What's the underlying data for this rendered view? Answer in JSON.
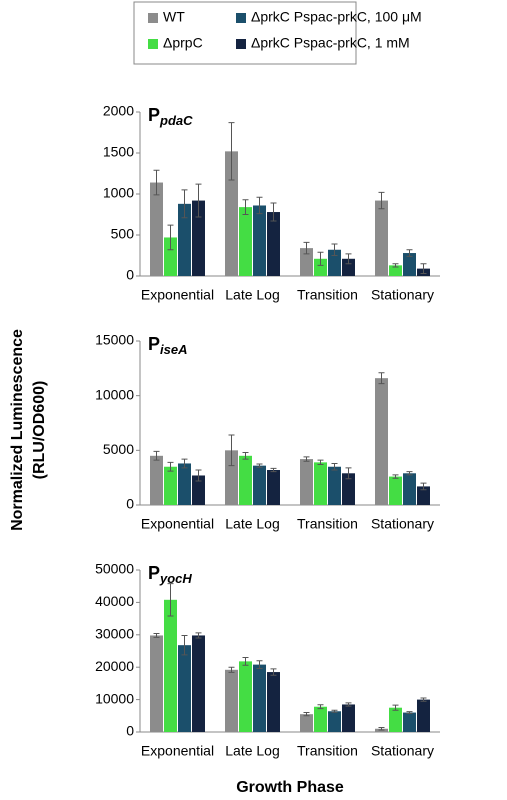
{
  "ylabel": [
    "Normalized Luminescence",
    "(RLU/OD600)"
  ],
  "xlabel": "Growth Phase",
  "chart_data": [
    {
      "type": "bar",
      "title": "P",
      "title_subscript": "pdaC",
      "categories": [
        "Exponential",
        "Late Log",
        "Transition",
        "Stationary"
      ],
      "ylim": [
        0,
        2000
      ],
      "yticks": [
        0,
        500,
        1000,
        1500,
        2000
      ],
      "series": [
        {
          "name": "WT",
          "color": "#8c8c8c",
          "values": [
            1140,
            1520,
            340,
            920
          ],
          "errors": [
            150,
            350,
            70,
            100
          ]
        },
        {
          "name": "ΔprpC",
          "color": "#44dd44",
          "values": [
            470,
            840,
            210,
            130
          ],
          "errors": [
            150,
            90,
            80,
            20
          ]
        },
        {
          "name": "ΔprkC Pspac-prkC, 100 μM",
          "color": "#1b4f6b",
          "values": [
            880,
            860,
            320,
            280
          ],
          "errors": [
            170,
            100,
            70,
            40
          ]
        },
        {
          "name": "ΔprkC Pspac-prkC, 1 mM",
          "color": "#142340",
          "values": [
            920,
            780,
            210,
            90
          ],
          "errors": [
            200,
            110,
            60,
            60
          ]
        }
      ]
    },
    {
      "type": "bar",
      "title": "P",
      "title_subscript": "iseA",
      "categories": [
        "Exponential",
        "Late Log",
        "Transition",
        "Stationary"
      ],
      "ylim": [
        0,
        15000
      ],
      "yticks": [
        0,
        5000,
        10000,
        15000
      ],
      "series": [
        {
          "name": "WT",
          "color": "#8c8c8c",
          "values": [
            4500,
            5000,
            4200,
            11600
          ],
          "errors": [
            400,
            1400,
            200,
            500
          ]
        },
        {
          "name": "ΔprpC",
          "color": "#44dd44",
          "values": [
            3500,
            4500,
            3900,
            2600
          ],
          "errors": [
            400,
            300,
            200,
            150
          ]
        },
        {
          "name": "ΔprkC Pspac-prkC, 100 μM",
          "color": "#1b4f6b",
          "values": [
            3800,
            3600,
            3500,
            2900
          ],
          "errors": [
            400,
            150,
            300,
            150
          ]
        },
        {
          "name": "ΔprkC Pspac-prkC, 1 mM",
          "color": "#142340",
          "values": [
            2700,
            3200,
            2900,
            1700
          ],
          "errors": [
            500,
            150,
            500,
            300
          ]
        }
      ]
    },
    {
      "type": "bar",
      "title": "P",
      "title_subscript": "yocH",
      "categories": [
        "Exponential",
        "Late Log",
        "Transition",
        "Stationary"
      ],
      "ylim": [
        0,
        50000
      ],
      "yticks": [
        0,
        10000,
        20000,
        30000,
        40000,
        50000
      ],
      "series": [
        {
          "name": "WT",
          "color": "#8c8c8c",
          "values": [
            29800,
            19200,
            5500,
            1000
          ],
          "errors": [
            600,
            800,
            500,
            400
          ]
        },
        {
          "name": "ΔprpC",
          "color": "#44dd44",
          "values": [
            40800,
            21800,
            7800,
            7500
          ],
          "errors": [
            5000,
            1200,
            600,
            800
          ]
        },
        {
          "name": "ΔprkC Pspac-prkC, 100 μM",
          "color": "#1b4f6b",
          "values": [
            26800,
            20800,
            6400,
            6000
          ],
          "errors": [
            3000,
            1200,
            300,
            300
          ]
        },
        {
          "name": "ΔprkC Pspac-prkC, 1 mM",
          "color": "#142340",
          "values": [
            29800,
            18500,
            8500,
            10000
          ],
          "errors": [
            800,
            1000,
            500,
            500
          ]
        }
      ]
    }
  ]
}
